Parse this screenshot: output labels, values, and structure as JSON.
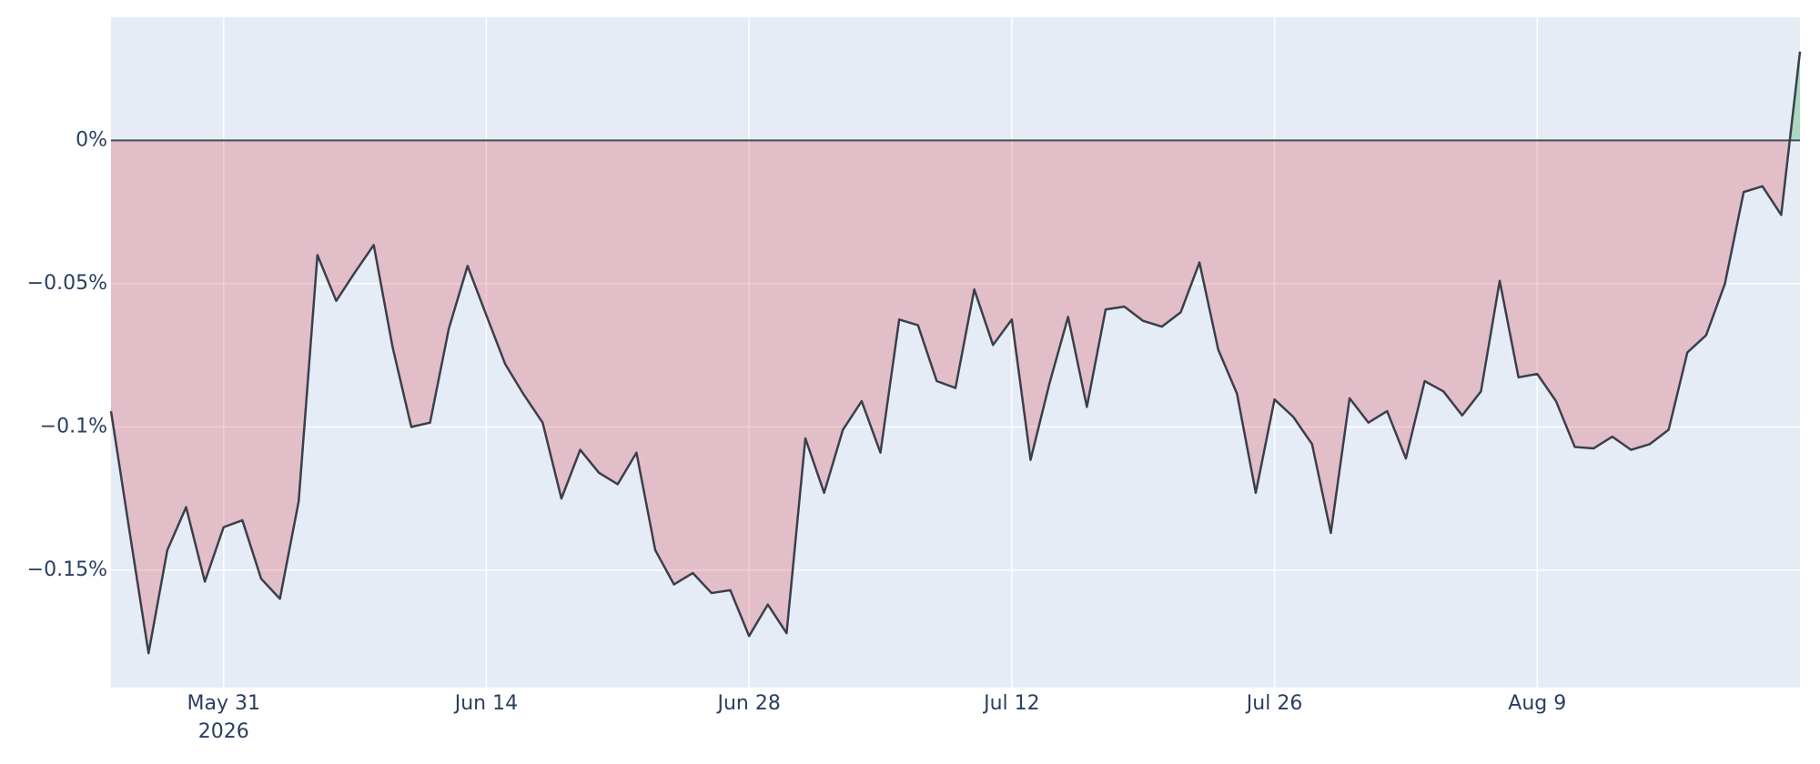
{
  "chart_data": {
    "type": "line",
    "x": [
      "2026-05-25",
      "2026-05-26",
      "2026-05-27",
      "2026-05-28",
      "2026-05-29",
      "2026-05-30",
      "2026-05-31",
      "2026-06-01",
      "2026-06-02",
      "2026-06-03",
      "2026-06-04",
      "2026-06-05",
      "2026-06-06",
      "2026-06-07",
      "2026-06-08",
      "2026-06-09",
      "2026-06-10",
      "2026-06-11",
      "2026-06-12",
      "2026-06-13",
      "2026-06-14",
      "2026-06-15",
      "2026-06-16",
      "2026-06-17",
      "2026-06-18",
      "2026-06-19",
      "2026-06-20",
      "2026-06-21",
      "2026-06-22",
      "2026-06-23",
      "2026-06-24",
      "2026-06-25",
      "2026-06-26",
      "2026-06-27",
      "2026-06-28",
      "2026-06-29",
      "2026-06-30",
      "2026-07-01",
      "2026-07-02",
      "2026-07-03",
      "2026-07-04",
      "2026-07-05",
      "2026-07-06",
      "2026-07-07",
      "2026-07-08",
      "2026-07-09",
      "2026-07-10",
      "2026-07-11",
      "2026-07-12",
      "2026-07-13",
      "2026-07-14",
      "2026-07-15",
      "2026-07-16",
      "2026-07-17",
      "2026-07-18",
      "2026-07-19",
      "2026-07-20",
      "2026-07-21",
      "2026-07-22",
      "2026-07-23",
      "2026-07-24",
      "2026-07-25",
      "2026-07-26",
      "2026-07-27",
      "2026-07-28",
      "2026-07-29",
      "2026-07-30",
      "2026-07-31",
      "2026-08-01",
      "2026-08-02",
      "2026-08-03",
      "2026-08-04",
      "2026-08-05",
      "2026-08-06",
      "2026-08-07",
      "2026-08-08",
      "2026-08-09",
      "2026-08-10",
      "2026-08-11",
      "2026-08-12",
      "2026-08-13",
      "2026-08-14",
      "2026-08-15",
      "2026-08-16",
      "2026-08-17",
      "2026-08-18",
      "2026-08-19",
      "2026-08-20",
      "2026-08-21",
      "2026-08-22",
      "2026-08-23"
    ],
    "values": [
      -0.0945,
      -0.137,
      -0.179,
      -0.143,
      -0.128,
      -0.154,
      -0.135,
      -0.1326,
      -0.153,
      -0.16,
      -0.126,
      -0.04,
      -0.056,
      -0.046,
      -0.0365,
      -0.072,
      -0.1,
      -0.0985,
      -0.0657,
      -0.0438,
      -0.061,
      -0.078,
      -0.0888,
      -0.0985,
      -0.125,
      -0.108,
      -0.116,
      -0.12,
      -0.109,
      -0.143,
      -0.155,
      -0.151,
      -0.158,
      -0.157,
      -0.173,
      -0.162,
      -0.172,
      -0.104,
      -0.123,
      -0.101,
      -0.091,
      -0.109,
      -0.0625,
      -0.0645,
      -0.084,
      -0.0864,
      -0.052,
      -0.0714,
      -0.0625,
      -0.1115,
      -0.085,
      -0.0616,
      -0.093,
      -0.059,
      -0.058,
      -0.063,
      -0.065,
      -0.06,
      -0.0426,
      -0.073,
      -0.0884,
      -0.123,
      -0.0904,
      -0.0965,
      -0.106,
      -0.137,
      -0.09,
      -0.0985,
      -0.0945,
      -0.111,
      -0.084,
      -0.0876,
      -0.096,
      -0.0876,
      -0.049,
      -0.0827,
      -0.0815,
      -0.091,
      -0.107,
      -0.1075,
      -0.1034,
      -0.108,
      -0.106,
      -0.101,
      -0.074,
      -0.068,
      -0.05,
      -0.018,
      -0.016,
      -0.026,
      0.031
    ],
    "color": "#3b3f4a",
    "negative_fill": "rgba(220,53,69,0.25)",
    "positive_fill": "rgba(40,167,69,0.3)",
    "xlim": [
      "2026-05-25",
      "2026-08-23"
    ],
    "xticks": [
      {
        "value": "2026-05-31",
        "label": "May 31"
      },
      {
        "value": "2026-06-14",
        "label": "Jun 14"
      },
      {
        "value": "2026-06-28",
        "label": "Jun 28"
      },
      {
        "value": "2026-07-12",
        "label": "Jul 12"
      },
      {
        "value": "2026-07-26",
        "label": "Jul 26"
      },
      {
        "value": "2026-08-09",
        "label": "Aug 9"
      }
    ],
    "year_label": "2026",
    "ylim": [
      -0.191,
      0.043
    ],
    "yticks": [
      {
        "value": 0,
        "label": "0%"
      },
      {
        "value": -0.05,
        "label": "−0.05%"
      },
      {
        "value": -0.1,
        "label": "−0.1%"
      },
      {
        "value": -0.15,
        "label": "−0.15%"
      }
    ],
    "grid": true
  }
}
